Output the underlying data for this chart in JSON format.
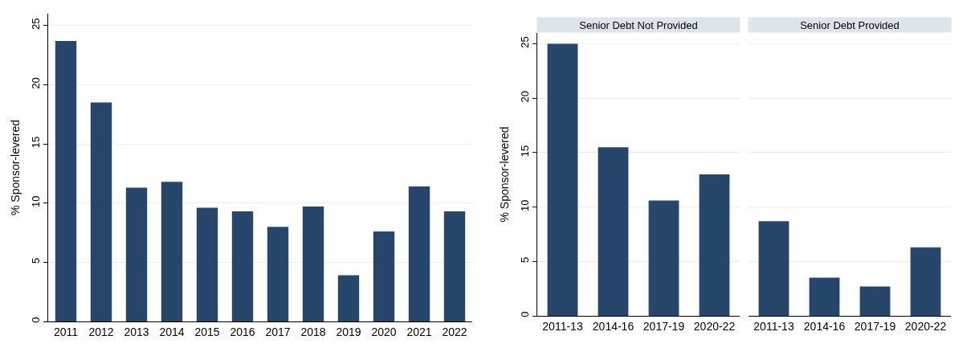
{
  "chart_data": [
    {
      "type": "bar",
      "ylabel": "% Sponsor-levered",
      "categories": [
        "2011",
        "2012",
        "2013",
        "2014",
        "2015",
        "2016",
        "2017",
        "2018",
        "2019",
        "2020",
        "2021",
        "2022"
      ],
      "values": [
        23.7,
        18.5,
        11.3,
        11.8,
        9.6,
        9.3,
        8.0,
        9.7,
        3.9,
        7.6,
        11.4,
        9.3
      ],
      "color": "#26476b",
      "ylim": [
        0,
        26
      ],
      "yticks": [
        0,
        5,
        10,
        15,
        20,
        25
      ],
      "grid": "y"
    },
    {
      "type": "bar",
      "title": "Senior Debt Not Provided",
      "ylabel": "% Sponsor-levered",
      "categories": [
        "2011-13",
        "2014-16",
        "2017-19",
        "2020-22"
      ],
      "values": [
        25.0,
        15.5,
        10.6,
        13.0
      ],
      "color": "#26476b",
      "ylim": [
        0,
        26
      ],
      "yticks": [
        0,
        5,
        10,
        15,
        20,
        25
      ],
      "grid": "y"
    },
    {
      "type": "bar",
      "title": "Senior Debt Provided",
      "categories": [
        "2011-13",
        "2014-16",
        "2017-19",
        "2020-22"
      ],
      "values": [
        8.7,
        3.5,
        2.7,
        6.3
      ],
      "color": "#26476b",
      "yticks": [
        0,
        5,
        10,
        15,
        20,
        25
      ],
      "grid": "y",
      "tick_labels": "x"
    }
  ]
}
